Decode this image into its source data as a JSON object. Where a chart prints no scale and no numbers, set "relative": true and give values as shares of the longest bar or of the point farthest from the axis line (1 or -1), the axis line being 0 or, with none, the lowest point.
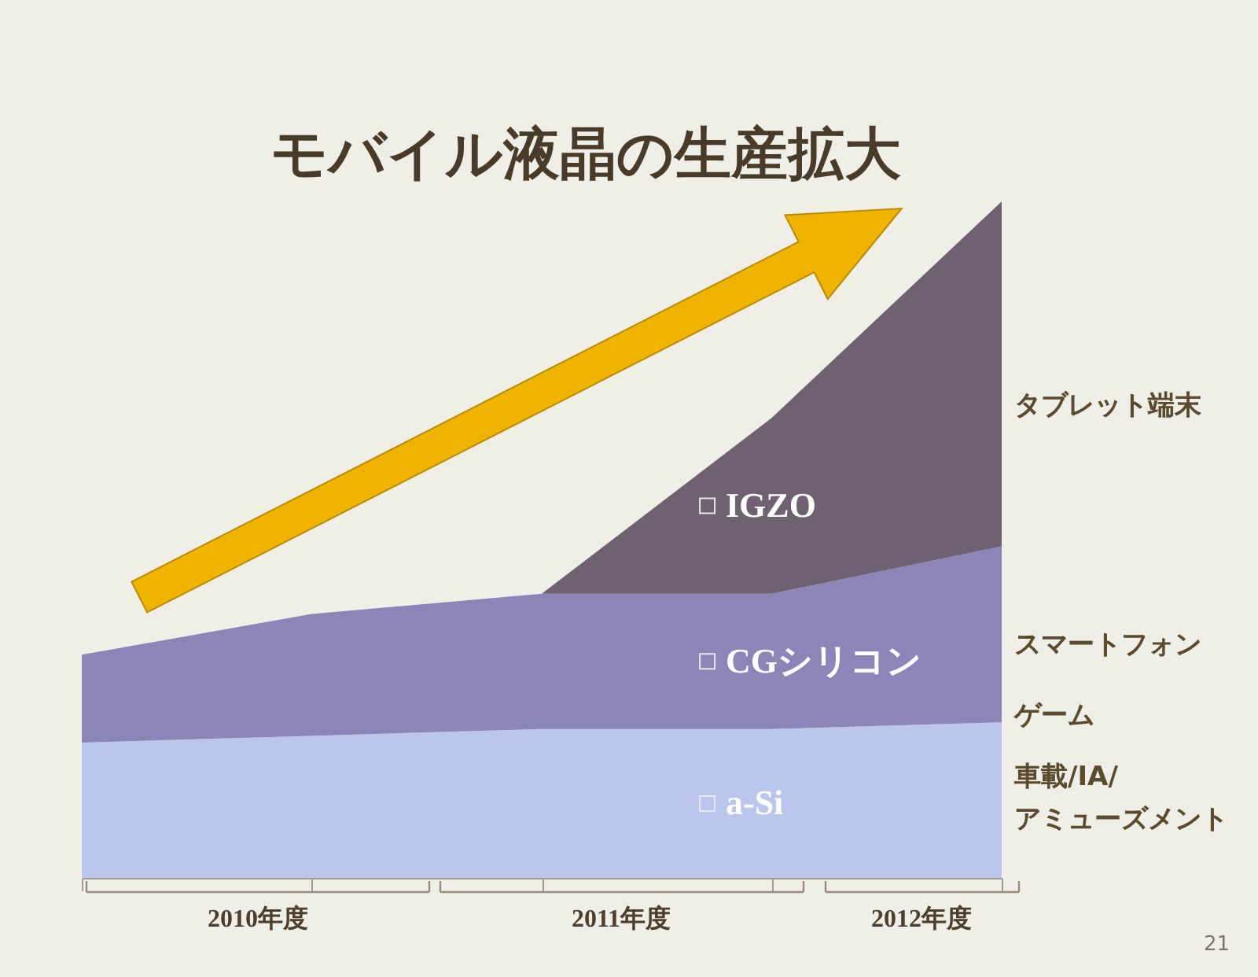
{
  "chart_data": {
    "type": "area",
    "title": "モバイル液晶の生産拡大",
    "categories": [
      null,
      null,
      null,
      null,
      null
    ],
    "relative": true,
    "stacked": true,
    "legend": "right",
    "series": [
      {
        "name": "a-Si",
        "color": "#bac6ec",
        "values": [
          0.2,
          0.21,
          0.22,
          0.22,
          0.23
        ]
      },
      {
        "name": "CGシリコン",
        "color": "#8c86b8",
        "values": [
          0.13,
          0.18,
          0.2,
          0.2,
          0.26
        ]
      },
      {
        "name": "IGZO",
        "color": "#6f6171",
        "values": [
          null,
          null,
          0,
          0.26,
          0.51
        ]
      }
    ],
    "annotations": [
      "タブレット端末",
      "スマートフォン",
      "ゲーム",
      "車載/IA/\nアミューズメント",
      "2010年度",
      "2011年度",
      "2012年度",
      "21"
    ]
  }
}
